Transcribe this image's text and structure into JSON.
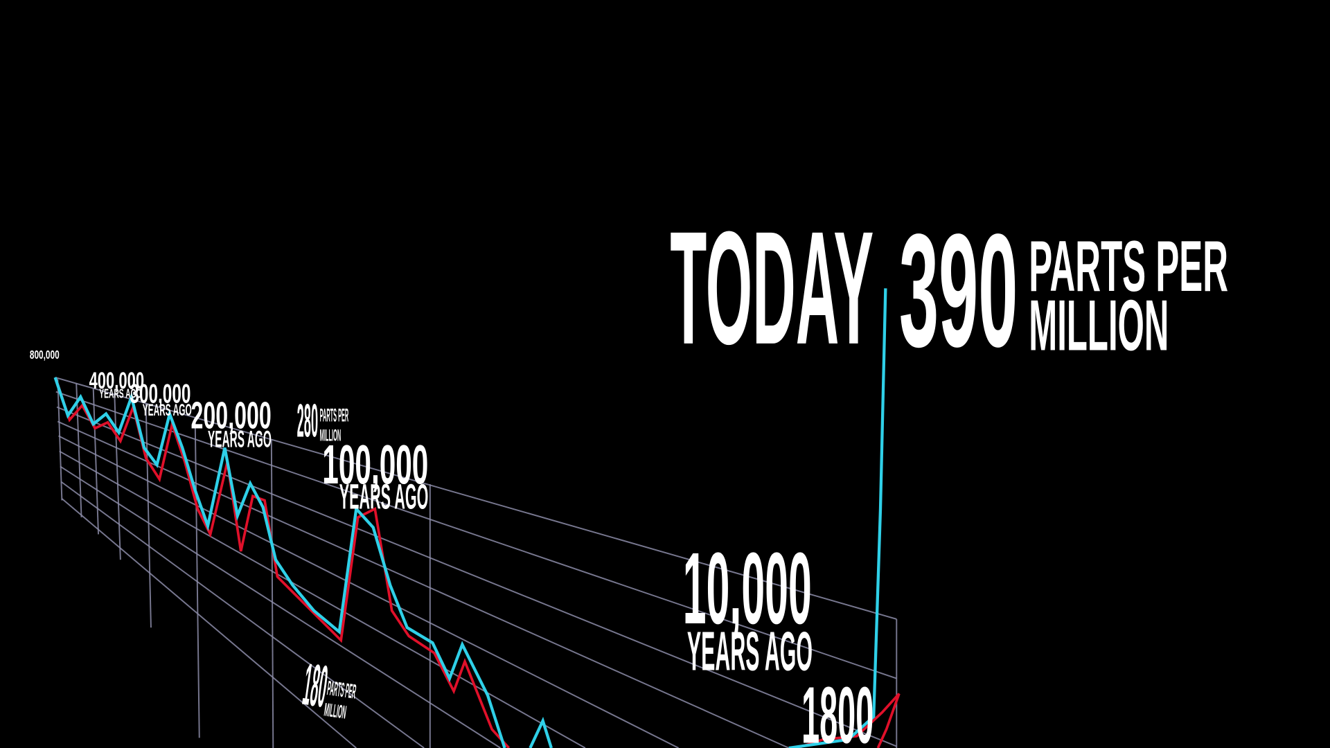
{
  "labels": [
    "TODAY",
    "390",
    "PARTS PER",
    "MILLION",
    "10,000",
    "YEARS AGO",
    "1800",
    "100,000",
    "YEARS AGO",
    "200,000",
    "YEARS AGO",
    "300,000",
    "YEARS AGO",
    "400,000",
    "YEARS AGO",
    "280",
    "PARTS PER",
    "MILLION",
    "180",
    "PARTS PER",
    "MILLION",
    "800,000"
  ]
}
